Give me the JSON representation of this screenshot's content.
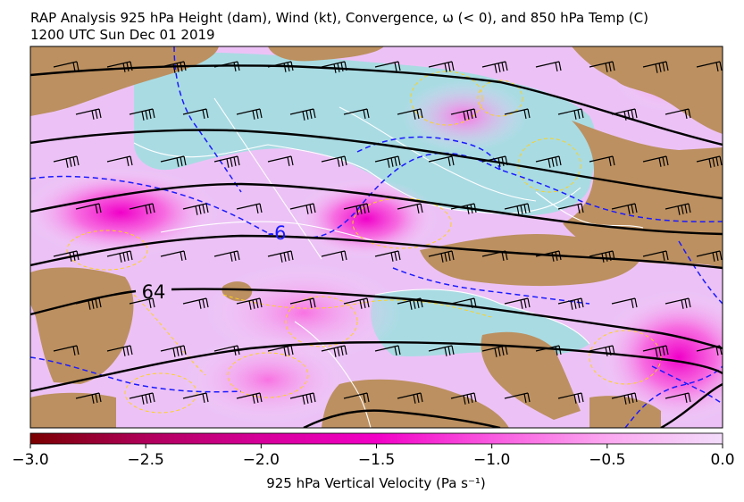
{
  "title": {
    "line1": "RAP Analysis 925 hPa Height (dam), Wind (kt), Convergence, ω (< 0), and 850 hPa Temp (C)",
    "line2": "1200 UTC Sun Dec 01 2019"
  },
  "map": {
    "contour_labels": {
      "height": "64",
      "temperature": "-6"
    },
    "colors": {
      "land": "#bc9060",
      "water": "#a9dbe3",
      "height_contour": "#000000",
      "temperature_contour": "#1a1aff",
      "convergence_contour": "#ffd21a",
      "coastline": "#ffffff"
    }
  },
  "colorbar": {
    "label": "925 hPa Vertical Velocity (Pa s⁻¹)",
    "ticks": [
      "−3.0",
      "−2.5",
      "−2.0",
      "−1.5",
      "−1.0",
      "−0.5",
      "0.0"
    ],
    "tick_values": [
      -3.0,
      -2.5,
      -2.0,
      -1.5,
      -1.0,
      -0.5,
      0.0
    ],
    "range": [
      -3.0,
      0.0
    ],
    "colors": [
      "#7a0000",
      "#b0005a",
      "#d6009a",
      "#f200c6",
      "#f95ae0",
      "#fba8f0",
      "#f3dcfb"
    ]
  }
}
